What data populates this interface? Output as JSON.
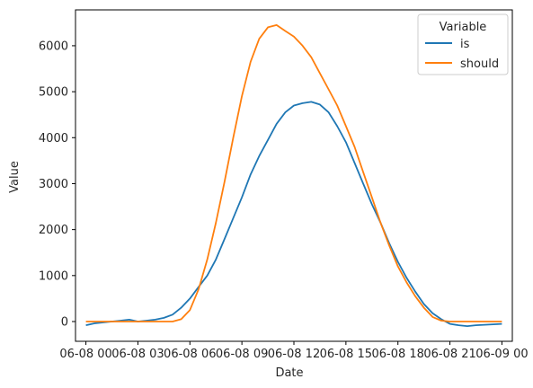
{
  "chart_data": {
    "type": "line",
    "xlabel": "Date",
    "ylabel": "Value",
    "x_tick_labels": [
      "06-08 00",
      "06-08 03",
      "06-08 06",
      "06-08 09",
      "06-08 12",
      "06-08 15",
      "06-08 18",
      "06-08 21",
      "06-09 00"
    ],
    "y_ticks": [
      0,
      1000,
      2000,
      3000,
      4000,
      5000,
      6000
    ],
    "xlim": [
      -0.6,
      24.6
    ],
    "ylim": [
      -430,
      6780
    ],
    "legend": {
      "title": "Variable",
      "position": "top-right"
    },
    "colors": {
      "is": "#1f77b4",
      "should": "#ff7f0e"
    },
    "series": [
      {
        "name": "is",
        "x": [
          0,
          0.5,
          1,
          1.5,
          2,
          2.5,
          3,
          3.5,
          4,
          4.5,
          5,
          5.5,
          6,
          6.5,
          7,
          7.5,
          8,
          8.5,
          9,
          9.5,
          10,
          10.5,
          11,
          11.5,
          12,
          12.5,
          13,
          13.5,
          14,
          14.5,
          15,
          15.5,
          16,
          16.5,
          17,
          17.5,
          18,
          18.5,
          19,
          19.5,
          20,
          20.5,
          21,
          21.5,
          22,
          22.5,
          23,
          23.5,
          24
        ],
        "values": [
          -80,
          -40,
          -20,
          0,
          20,
          40,
          0,
          20,
          40,
          80,
          150,
          300,
          500,
          750,
          1000,
          1350,
          1800,
          2250,
          2700,
          3200,
          3600,
          3950,
          4300,
          4550,
          4700,
          4750,
          4780,
          4720,
          4550,
          4250,
          3900,
          3450,
          3000,
          2550,
          2150,
          1700,
          1300,
          950,
          650,
          380,
          180,
          50,
          -50,
          -80,
          -100,
          -80,
          -70,
          -60,
          -50
        ]
      },
      {
        "name": "should",
        "x": [
          0,
          0.5,
          1,
          1.5,
          2,
          2.5,
          3,
          3.5,
          4,
          4.5,
          5,
          5.5,
          6,
          6.5,
          7,
          7.5,
          8,
          8.5,
          9,
          9.5,
          10,
          10.5,
          11,
          11.5,
          12,
          12.5,
          13,
          13.5,
          14,
          14.5,
          15,
          15.5,
          16,
          16.5,
          17,
          17.5,
          18,
          18.5,
          19,
          19.5,
          20,
          20.5,
          21,
          21.5,
          22,
          22.5,
          23,
          23.5,
          24
        ],
        "values": [
          0,
          0,
          0,
          0,
          0,
          0,
          0,
          0,
          0,
          0,
          0,
          50,
          250,
          700,
          1350,
          2150,
          3050,
          4000,
          4900,
          5650,
          6150,
          6400,
          6450,
          6320,
          6200,
          6000,
          5750,
          5400,
          5050,
          4700,
          4250,
          3800,
          3250,
          2700,
          2150,
          1650,
          1200,
          850,
          550,
          300,
          100,
          20,
          0,
          0,
          0,
          0,
          0,
          0,
          0
        ]
      }
    ]
  }
}
